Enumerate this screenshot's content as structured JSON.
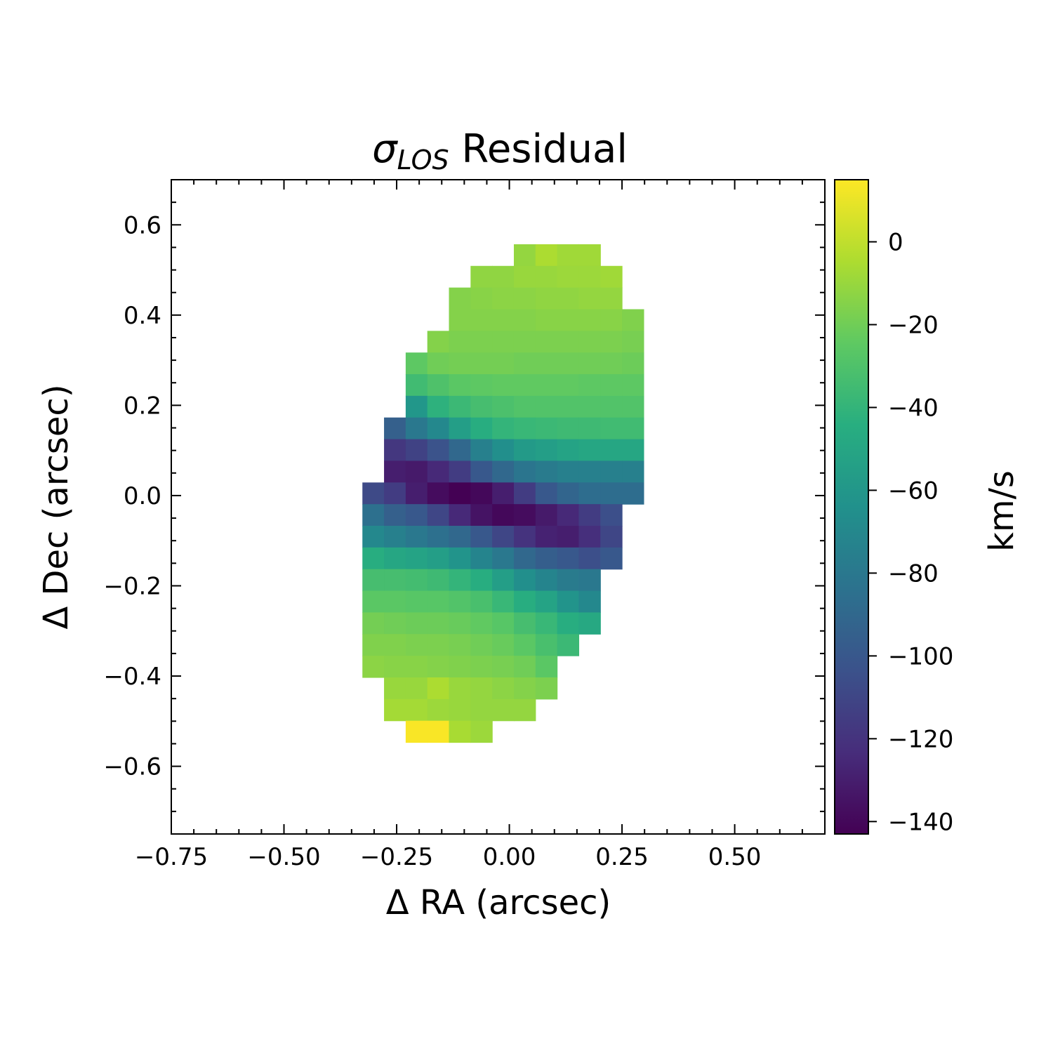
{
  "chart_data": {
    "type": "heatmap",
    "title_main": "σ",
    "title_sub": "LOS",
    "title_rest": " Residual",
    "xlabel": "Δ RA (arcsec)",
    "ylabel": "Δ Dec (arcsec)",
    "colorbar_label": "km/s",
    "xlim": [
      -0.75,
      0.7
    ],
    "ylim": [
      -0.75,
      0.7
    ],
    "xticks": [
      -0.75,
      -0.5,
      -0.25,
      0.0,
      0.25,
      0.5
    ],
    "xtick_labels": [
      "−0.75",
      "−0.50",
      "−0.25",
      "0.00",
      "0.25",
      "0.50"
    ],
    "yticks": [
      0.6,
      0.4,
      0.2,
      0.0,
      -0.2,
      -0.4,
      -0.6
    ],
    "ytick_labels": [
      "0.6",
      "0.4",
      "0.2",
      "0.0",
      "−0.2",
      "−0.4",
      "−0.6"
    ],
    "colorbar_ticks": [
      0,
      -20,
      -40,
      -60,
      -80,
      -100,
      -120,
      -140
    ],
    "colorbar_tick_labels": [
      "0",
      "−20",
      "−40",
      "−60",
      "−80",
      "−100",
      "−120",
      "−140"
    ],
    "clim": [
      -143,
      15
    ],
    "colormap": "viridis",
    "grid": false,
    "pixel_size": 0.048,
    "col0_center": -0.302,
    "row0_center": 0.533,
    "values": [
      [
        null,
        null,
        null,
        null,
        null,
        null,
        null,
        -11,
        -5,
        -8,
        -8,
        null,
        null
      ],
      [
        null,
        null,
        null,
        null,
        null,
        -12,
        -12,
        -10,
        -10,
        -9,
        -9,
        -8,
        null
      ],
      [
        null,
        null,
        null,
        null,
        -15,
        -14,
        -13,
        -13,
        -12,
        -12,
        -11,
        -11,
        null
      ],
      [
        null,
        null,
        null,
        null,
        -15,
        -15,
        -15,
        -15,
        -14,
        -14,
        -14,
        -14,
        -16
      ],
      [
        null,
        null,
        null,
        -15,
        -17,
        -17,
        -17,
        -17,
        -17,
        -17,
        -17,
        -17,
        -18
      ],
      [
        null,
        null,
        -25,
        -20,
        -19,
        -19,
        -19,
        -20,
        -20,
        -20,
        -20,
        -20,
        -21
      ],
      [
        null,
        null,
        -35,
        -30,
        -26,
        -25,
        -24,
        -24,
        -24,
        -24,
        -25,
        -25,
        -25
      ],
      [
        null,
        null,
        -60,
        -42,
        -37,
        -33,
        -31,
        -29,
        -29,
        -29,
        -29,
        -29,
        -29
      ],
      [
        null,
        -95,
        -80,
        -70,
        -55,
        -45,
        -40,
        -38,
        -37,
        -36,
        -36,
        -35,
        -35
      ],
      [
        null,
        -118,
        -112,
        -103,
        -90,
        -75,
        -65,
        -58,
        -55,
        -52,
        -50,
        -50,
        -50
      ],
      [
        null,
        -130,
        -132,
        -125,
        -115,
        -100,
        -90,
        -82,
        -78,
        -75,
        -75,
        -75,
        -75
      ],
      [
        -108,
        -115,
        -130,
        -138,
        -143,
        -140,
        -130,
        -115,
        -100,
        -92,
        -87,
        -87,
        -87
      ],
      [
        -85,
        -95,
        -100,
        -110,
        -125,
        -135,
        -140,
        -138,
        -132,
        -125,
        -115,
        -105,
        null
      ],
      [
        -70,
        -75,
        -80,
        -85,
        -90,
        -100,
        -110,
        -120,
        -128,
        -130,
        -122,
        -110,
        null
      ],
      [
        -45,
        -50,
        -52,
        -55,
        -62,
        -72,
        -80,
        -90,
        -96,
        -100,
        -105,
        -100,
        null
      ],
      [
        -33,
        -33,
        -34,
        -36,
        -40,
        -45,
        -55,
        -65,
        -72,
        -78,
        -80,
        null,
        null
      ],
      [
        -26,
        -26,
        -27,
        -27,
        -29,
        -32,
        -38,
        -45,
        -52,
        -62,
        -70,
        null,
        null
      ],
      [
        -19,
        -20,
        -21,
        -21,
        -22,
        -24,
        -27,
        -33,
        -38,
        -45,
        -48,
        null,
        null
      ],
      [
        -16,
        -16,
        -17,
        -17,
        -18,
        -20,
        -22,
        -26,
        -32,
        -37,
        null,
        null,
        null
      ],
      [
        -13,
        -14,
        -14,
        -15,
        -16,
        -17,
        -18,
        -20,
        -26,
        null,
        null,
        null,
        null
      ],
      [
        null,
        -10,
        -10,
        -5,
        -10,
        -11,
        -13,
        -15,
        -17,
        null,
        null,
        null,
        null
      ],
      [
        null,
        -7,
        -7,
        -9,
        -10,
        -11,
        -11,
        -11,
        null,
        null,
        null,
        null,
        null
      ],
      [
        null,
        null,
        14,
        14,
        -6,
        -9,
        null,
        null,
        null,
        null,
        null,
        null,
        null
      ]
    ]
  }
}
